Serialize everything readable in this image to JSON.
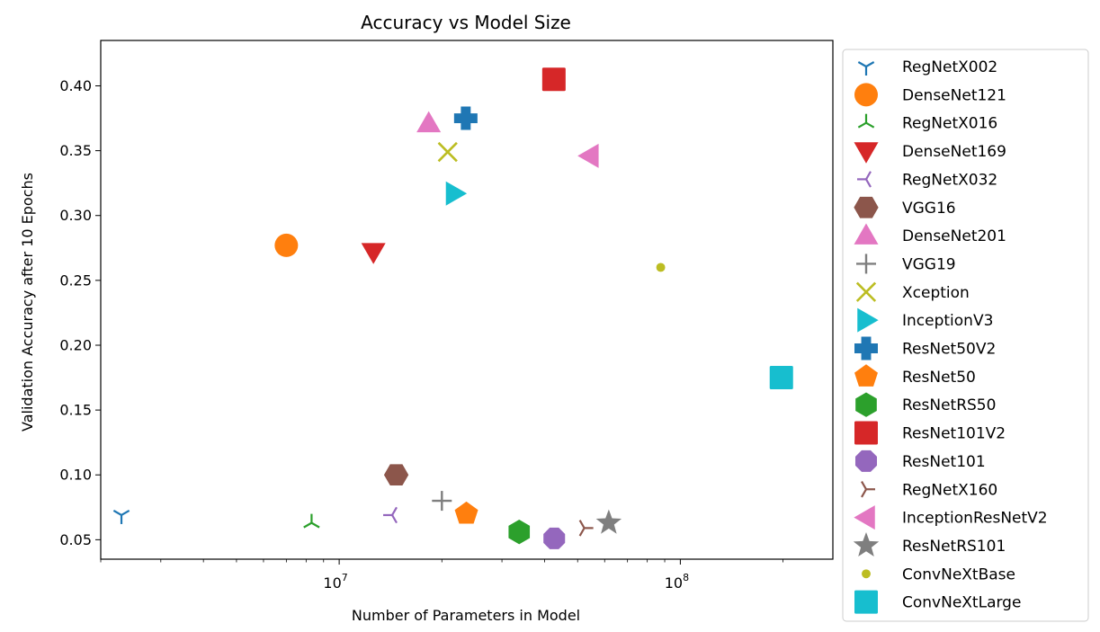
{
  "chart_data": {
    "type": "scatter",
    "title": "Accuracy vs Model Size",
    "xlabel": "Number of Parameters in Model",
    "ylabel": "Validation Accuracy after 10 Epochs",
    "xscale": "log",
    "xlim": [
      2000000,
      280000000
    ],
    "ylim": [
      0.035,
      0.435
    ],
    "xticks": [
      {
        "value": 10000000,
        "base": "10",
        "exp": "7"
      },
      {
        "value": 100000000,
        "base": "10",
        "exp": "8"
      }
    ],
    "yticks": [
      "0.05",
      "0.10",
      "0.15",
      "0.20",
      "0.25",
      "0.30",
      "0.35",
      "0.40"
    ],
    "grid": false,
    "legend_position": "right",
    "series": [
      {
        "name": "RegNetX002",
        "x": 2300000,
        "y": 0.069,
        "marker": "tri_down",
        "color": "#1f77b4"
      },
      {
        "name": "DenseNet121",
        "x": 7000000,
        "y": 0.277,
        "marker": "circle",
        "color": "#ff7f0e"
      },
      {
        "name": "RegNetX016",
        "x": 8300000,
        "y": 0.063,
        "marker": "tri_up",
        "color": "#2ca02c"
      },
      {
        "name": "DenseNet169",
        "x": 12600000,
        "y": 0.272,
        "marker": "triangle_down",
        "color": "#d62728"
      },
      {
        "name": "RegNetX032",
        "x": 14300000,
        "y": 0.069,
        "marker": "tri_left",
        "color": "#9467bd"
      },
      {
        "name": "VGG16",
        "x": 14700000,
        "y": 0.1,
        "marker": "hexagon2",
        "color": "#8c564b"
      },
      {
        "name": "DenseNet201",
        "x": 18300000,
        "y": 0.371,
        "marker": "triangle_up",
        "color": "#e377c2"
      },
      {
        "name": "VGG19",
        "x": 20000000,
        "y": 0.08,
        "marker": "plus",
        "color": "#7f7f7f"
      },
      {
        "name": "Xception",
        "x": 20800000,
        "y": 0.349,
        "marker": "x",
        "color": "#bcbd22"
      },
      {
        "name": "InceptionV3",
        "x": 21800000,
        "y": 0.317,
        "marker": "triangle_right",
        "color": "#17becf"
      },
      {
        "name": "ResNet50V2",
        "x": 23500000,
        "y": 0.375,
        "marker": "plus_filled",
        "color": "#1f77b4"
      },
      {
        "name": "ResNet50",
        "x": 23600000,
        "y": 0.07,
        "marker": "pentagon",
        "color": "#ff7f0e"
      },
      {
        "name": "ResNetRS50",
        "x": 33700000,
        "y": 0.056,
        "marker": "hexagon1",
        "color": "#2ca02c"
      },
      {
        "name": "ResNet101V2",
        "x": 42600000,
        "y": 0.405,
        "marker": "square",
        "color": "#d62728"
      },
      {
        "name": "ResNet101",
        "x": 42700000,
        "y": 0.051,
        "marker": "octagon",
        "color": "#9467bd"
      },
      {
        "name": "RegNetX160",
        "x": 52300000,
        "y": 0.059,
        "marker": "tri_right",
        "color": "#8c564b"
      },
      {
        "name": "InceptionResNetV2",
        "x": 54300000,
        "y": 0.346,
        "marker": "triangle_left",
        "color": "#e377c2"
      },
      {
        "name": "ResNetRS101",
        "x": 61700000,
        "y": 0.063,
        "marker": "star",
        "color": "#7f7f7f"
      },
      {
        "name": "ConvNeXtBase",
        "x": 87600000,
        "y": 0.26,
        "marker": "point",
        "color": "#bcbd22"
      },
      {
        "name": "ConvNeXtLarge",
        "x": 197800000,
        "y": 0.175,
        "marker": "square",
        "color": "#17becf"
      }
    ]
  }
}
